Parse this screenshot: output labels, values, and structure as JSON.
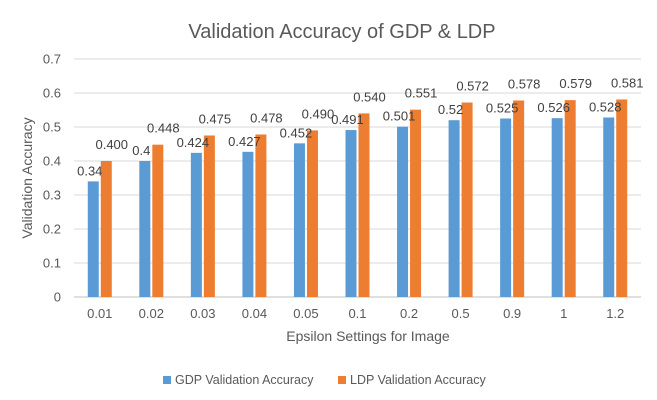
{
  "chart_data": {
    "type": "bar",
    "title": "Validation Accuracy of GDP & LDP",
    "xlabel": "Epsilon Settings for Image",
    "ylabel": "Validation Accuracy",
    "ylim": [
      0,
      0.7
    ],
    "yticks": [
      "0",
      "0.1",
      "0.2",
      "0.3",
      "0.4",
      "0.5",
      "0.6",
      "0.7"
    ],
    "categories": [
      "0.01",
      "0.02",
      "0.03",
      "0.04",
      "0.05",
      "0.1",
      "0.2",
      "0.5",
      "0.9",
      "1",
      "1.2"
    ],
    "grid": true,
    "legend_position": "bottom",
    "series": [
      {
        "name": "GDP Validation Accuracy",
        "color": "#5B9BD5",
        "values": [
          0.34,
          0.4,
          0.424,
          0.427,
          0.452,
          0.491,
          0.501,
          0.52,
          0.525,
          0.526,
          0.528
        ],
        "labels": [
          "0.34",
          "0.4",
          "0.424",
          "0.427",
          "0.452",
          "0.491",
          "0.501",
          "0.52",
          "0.525",
          "0.526",
          "0.528"
        ]
      },
      {
        "name": "LDP Validation Accuracy",
        "color": "#ED7D31",
        "values": [
          0.4,
          0.448,
          0.475,
          0.478,
          0.49,
          0.54,
          0.551,
          0.572,
          0.578,
          0.579,
          0.581
        ],
        "labels": [
          "0.400",
          "0.448",
          "0.475",
          "0.478",
          "0.490",
          "0.540",
          "0.551",
          "0.572",
          "0.578",
          "0.579",
          "0.581"
        ]
      }
    ]
  }
}
